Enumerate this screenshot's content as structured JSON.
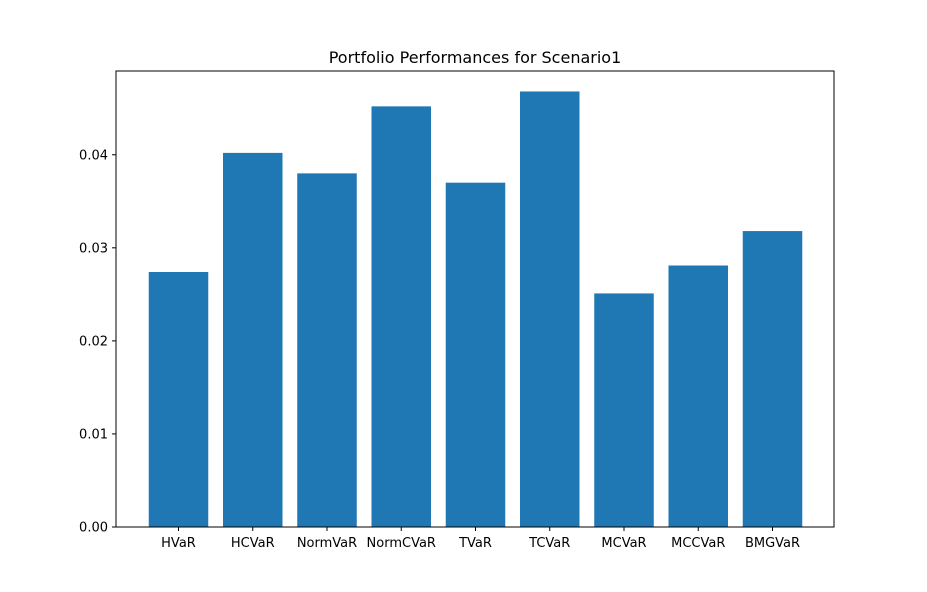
{
  "chart_data": {
    "type": "bar",
    "title": "Portfolio Performances for Scenario1",
    "xlabel": "",
    "ylabel": "",
    "categories": [
      "HVaR",
      "HCVaR",
      "NormVaR",
      "NormCVaR",
      "TVaR",
      "TCVaR",
      "MCVaR",
      "MCCVaR",
      "BMGVaR"
    ],
    "values": [
      0.0274,
      0.0402,
      0.038,
      0.0452,
      0.037,
      0.0468,
      0.0251,
      0.0281,
      0.0318
    ],
    "ylim": [
      0,
      0.049
    ],
    "yticks": [
      0.0,
      0.01,
      0.02,
      0.03,
      0.04
    ],
    "ytick_labels": [
      "0.00",
      "0.01",
      "0.02",
      "0.03",
      "0.04"
    ],
    "bar_color": "#1f77b4",
    "grid": false,
    "legend": "none"
  }
}
